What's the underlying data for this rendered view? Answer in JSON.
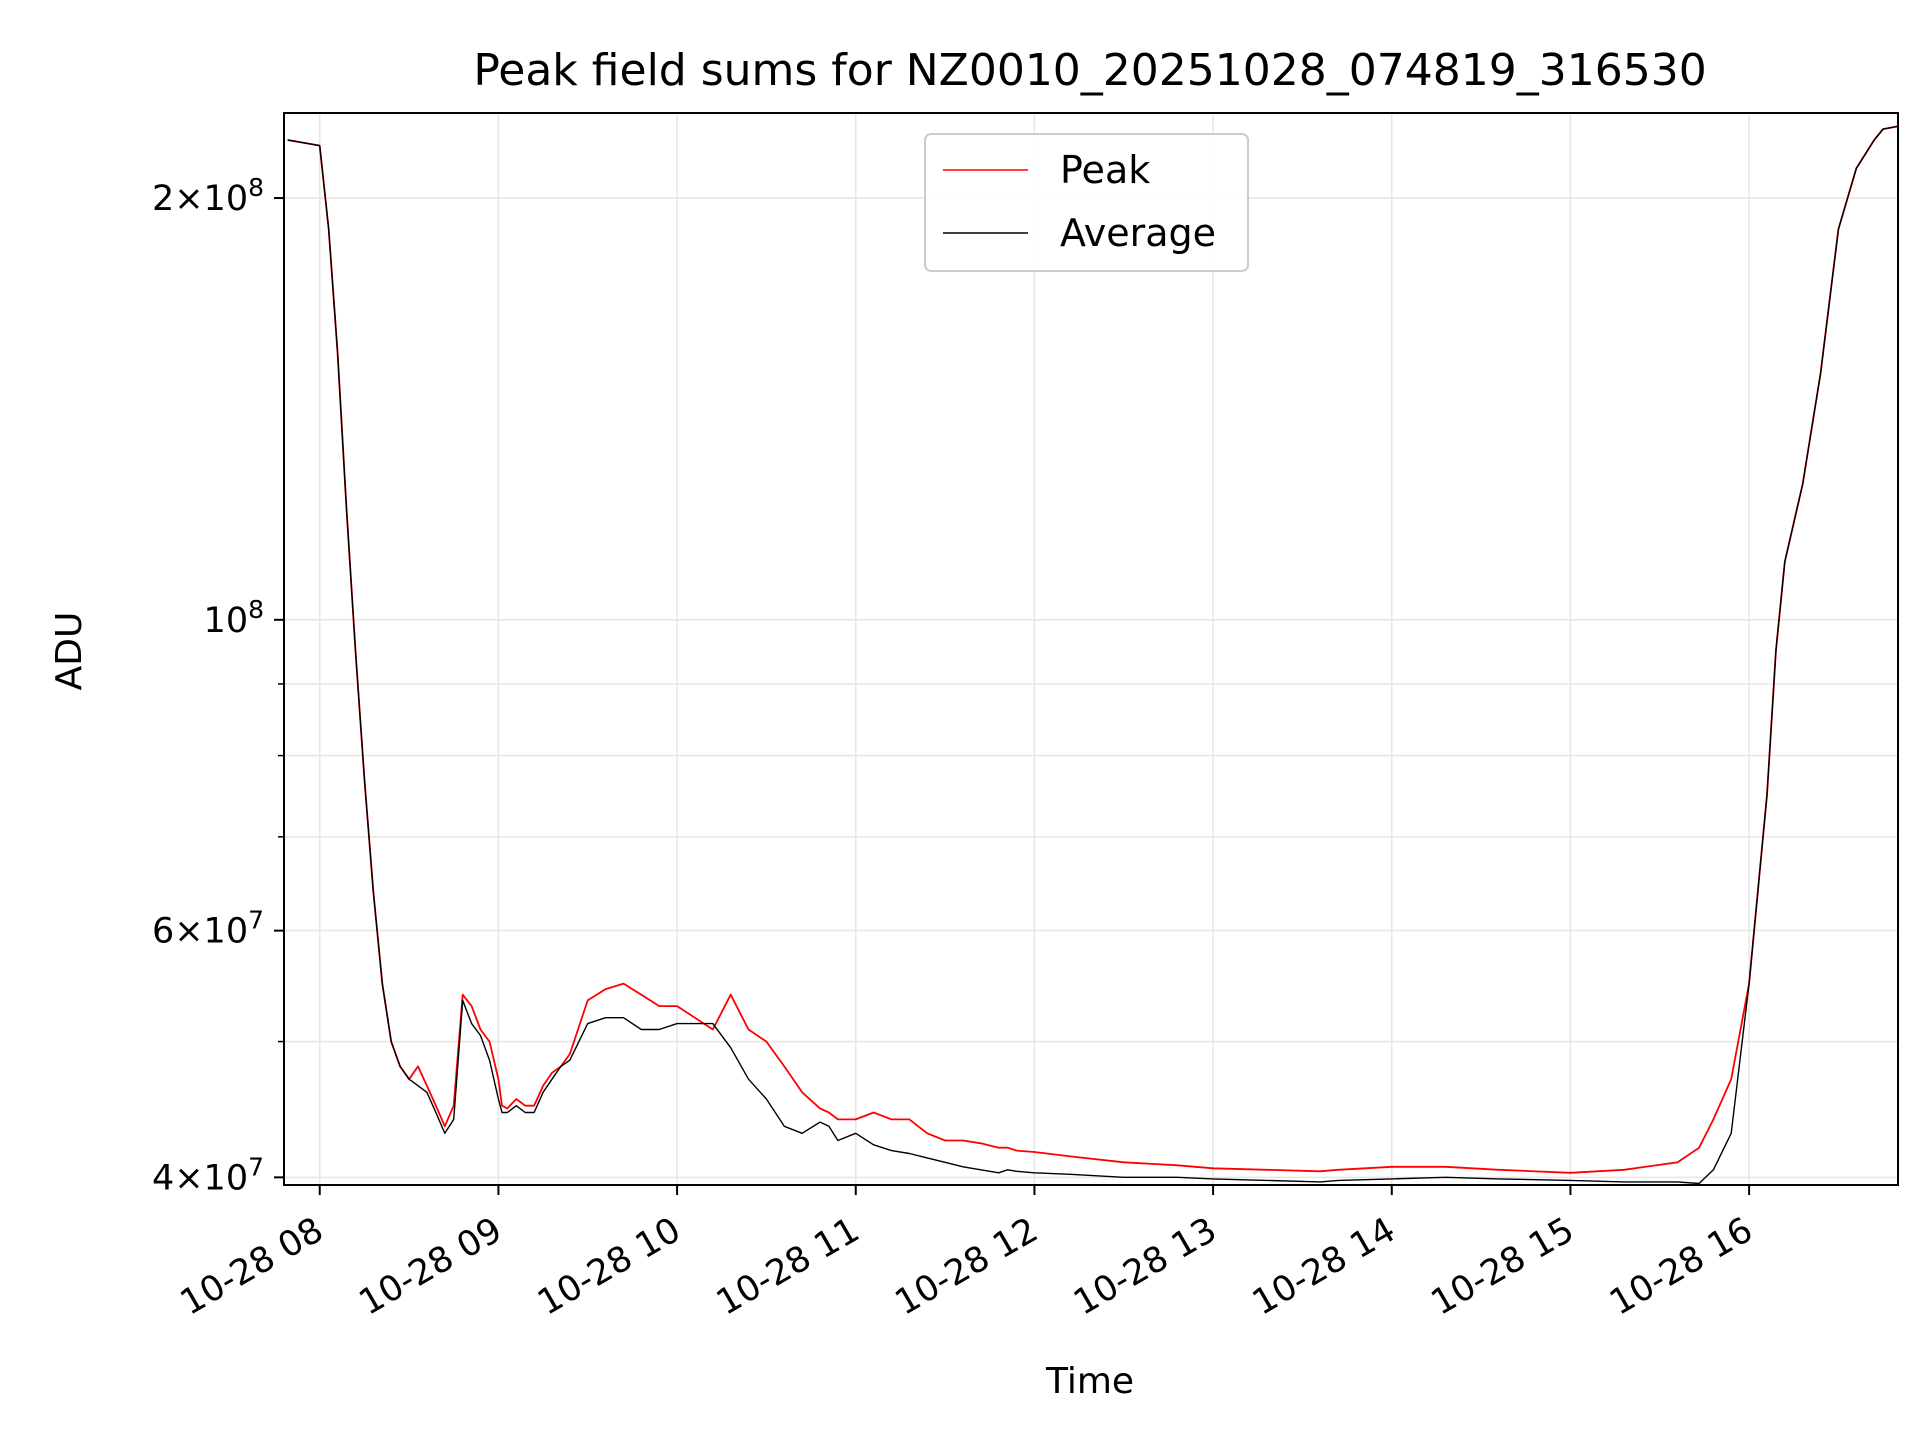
{
  "chart_data": {
    "type": "line",
    "title": "Peak field sums for NZ0010_20251028_074819_316530",
    "xlabel": "Time",
    "ylabel": "ADU",
    "x_ticks": [
      "10-28 08",
      "10-28 09",
      "10-28 10",
      "10-28 11",
      "10-28 12",
      "10-28 13",
      "10-28 14",
      "10-28 15",
      "10-28 16"
    ],
    "x_tick_hours": [
      8,
      9,
      10,
      11,
      12,
      13,
      14,
      15,
      16
    ],
    "xlim": [
      "10-28 07:48",
      "10-28 16:50"
    ],
    "y_scale": "log",
    "ylim": [
      39500000,
      230000000
    ],
    "y_major_ticks": [
      {
        "value": 40000000,
        "mantissa": "4",
        "exp": "7"
      },
      {
        "value": 60000000,
        "mantissa": "6",
        "exp": "7"
      },
      {
        "value": 100000000,
        "mantissa": "",
        "exp": "8"
      },
      {
        "value": 200000000,
        "mantissa": "2",
        "exp": "8"
      }
    ],
    "y_minor_ticks": [
      50000000,
      70000000,
      80000000,
      90000000
    ],
    "grid": true,
    "legend_position": "top-center",
    "series": [
      {
        "name": "Peak",
        "color": "#ff0000",
        "x_hours": [
          7.82,
          8.0,
          8.05,
          8.1,
          8.15,
          8.2,
          8.25,
          8.3,
          8.35,
          8.4,
          8.45,
          8.5,
          8.55,
          8.6,
          8.65,
          8.7,
          8.75,
          8.8,
          8.85,
          8.9,
          8.95,
          9.0,
          9.02,
          9.05,
          9.1,
          9.15,
          9.2,
          9.25,
          9.3,
          9.35,
          9.4,
          9.5,
          9.6,
          9.7,
          9.8,
          9.9,
          10.0,
          10.1,
          10.2,
          10.3,
          10.4,
          10.5,
          10.6,
          10.7,
          10.8,
          10.85,
          10.9,
          11.0,
          11.1,
          11.2,
          11.3,
          11.4,
          11.5,
          11.6,
          11.7,
          11.8,
          11.85,
          11.9,
          12.0,
          12.2,
          12.5,
          12.8,
          13.0,
          13.3,
          13.6,
          13.7,
          14.0,
          14.3,
          14.6,
          15.0,
          15.3,
          15.6,
          15.72,
          15.8,
          15.9,
          16.0,
          16.1,
          16.15,
          16.2,
          16.3,
          16.4,
          16.5,
          16.6,
          16.7,
          16.75,
          16.83
        ],
        "values": [
          220000000,
          218000000,
          190000000,
          155000000,
          120000000,
          95000000,
          77000000,
          64000000,
          55000000,
          50000000,
          48000000,
          47000000,
          48000000,
          46500000,
          45000000,
          43500000,
          45000000,
          54000000,
          53000000,
          51000000,
          50000000,
          47000000,
          45000000,
          44800000,
          45500000,
          45000000,
          45000000,
          46500000,
          47500000,
          48000000,
          49000000,
          53500000,
          54500000,
          55000000,
          54000000,
          53000000,
          53000000,
          52000000,
          51000000,
          54000000,
          51000000,
          50000000,
          48000000,
          46000000,
          44800000,
          44500000,
          44000000,
          44000000,
          44500000,
          44000000,
          44000000,
          43000000,
          42500000,
          42500000,
          42300000,
          42000000,
          42000000,
          41800000,
          41700000,
          41400000,
          41000000,
          40800000,
          40600000,
          40500000,
          40400000,
          40500000,
          40700000,
          40700000,
          40500000,
          40300000,
          40500000,
          41000000,
          42000000,
          44000000,
          47000000,
          55000000,
          75000000,
          95000000,
          110000000,
          125000000,
          150000000,
          190000000,
          210000000,
          220000000,
          224000000,
          225000000
        ]
      },
      {
        "name": "Average",
        "color": "#000000",
        "x_hours": [
          7.82,
          8.0,
          8.05,
          8.1,
          8.15,
          8.2,
          8.25,
          8.3,
          8.35,
          8.4,
          8.45,
          8.5,
          8.55,
          8.6,
          8.65,
          8.7,
          8.75,
          8.8,
          8.85,
          8.9,
          8.95,
          9.0,
          9.02,
          9.05,
          9.1,
          9.15,
          9.2,
          9.25,
          9.3,
          9.35,
          9.4,
          9.5,
          9.6,
          9.7,
          9.8,
          9.9,
          10.0,
          10.1,
          10.2,
          10.3,
          10.4,
          10.5,
          10.6,
          10.7,
          10.8,
          10.85,
          10.9,
          11.0,
          11.1,
          11.2,
          11.3,
          11.4,
          11.5,
          11.6,
          11.7,
          11.8,
          11.85,
          11.9,
          12.0,
          12.2,
          12.5,
          12.8,
          13.0,
          13.3,
          13.6,
          13.7,
          14.0,
          14.3,
          14.6,
          15.0,
          15.3,
          15.6,
          15.72,
          15.8,
          15.9,
          16.0,
          16.1,
          16.15,
          16.2,
          16.3,
          16.4,
          16.5,
          16.6,
          16.7,
          16.75,
          16.83
        ],
        "values": [
          220000000,
          218000000,
          190000000,
          155000000,
          120000000,
          95000000,
          77000000,
          64000000,
          55000000,
          50000000,
          48000000,
          47000000,
          46500000,
          46000000,
          44500000,
          43000000,
          44000000,
          53500000,
          51500000,
          50500000,
          48500000,
          45500000,
          44500000,
          44500000,
          45000000,
          44500000,
          44500000,
          46000000,
          47000000,
          48000000,
          48500000,
          51500000,
          52000000,
          52000000,
          51000000,
          51000000,
          51500000,
          51500000,
          51500000,
          49500000,
          47000000,
          45500000,
          43500000,
          43000000,
          43800000,
          43500000,
          42500000,
          43000000,
          42200000,
          41800000,
          41600000,
          41300000,
          41000000,
          40700000,
          40500000,
          40300000,
          40500000,
          40400000,
          40300000,
          40200000,
          40000000,
          40000000,
          39900000,
          39800000,
          39700000,
          39800000,
          39900000,
          40000000,
          39900000,
          39800000,
          39700000,
          39700000,
          39600000,
          40500000,
          43000000,
          55000000,
          75000000,
          95000000,
          110000000,
          125000000,
          150000000,
          190000000,
          210000000,
          220000000,
          224000000,
          225000000
        ]
      }
    ]
  }
}
